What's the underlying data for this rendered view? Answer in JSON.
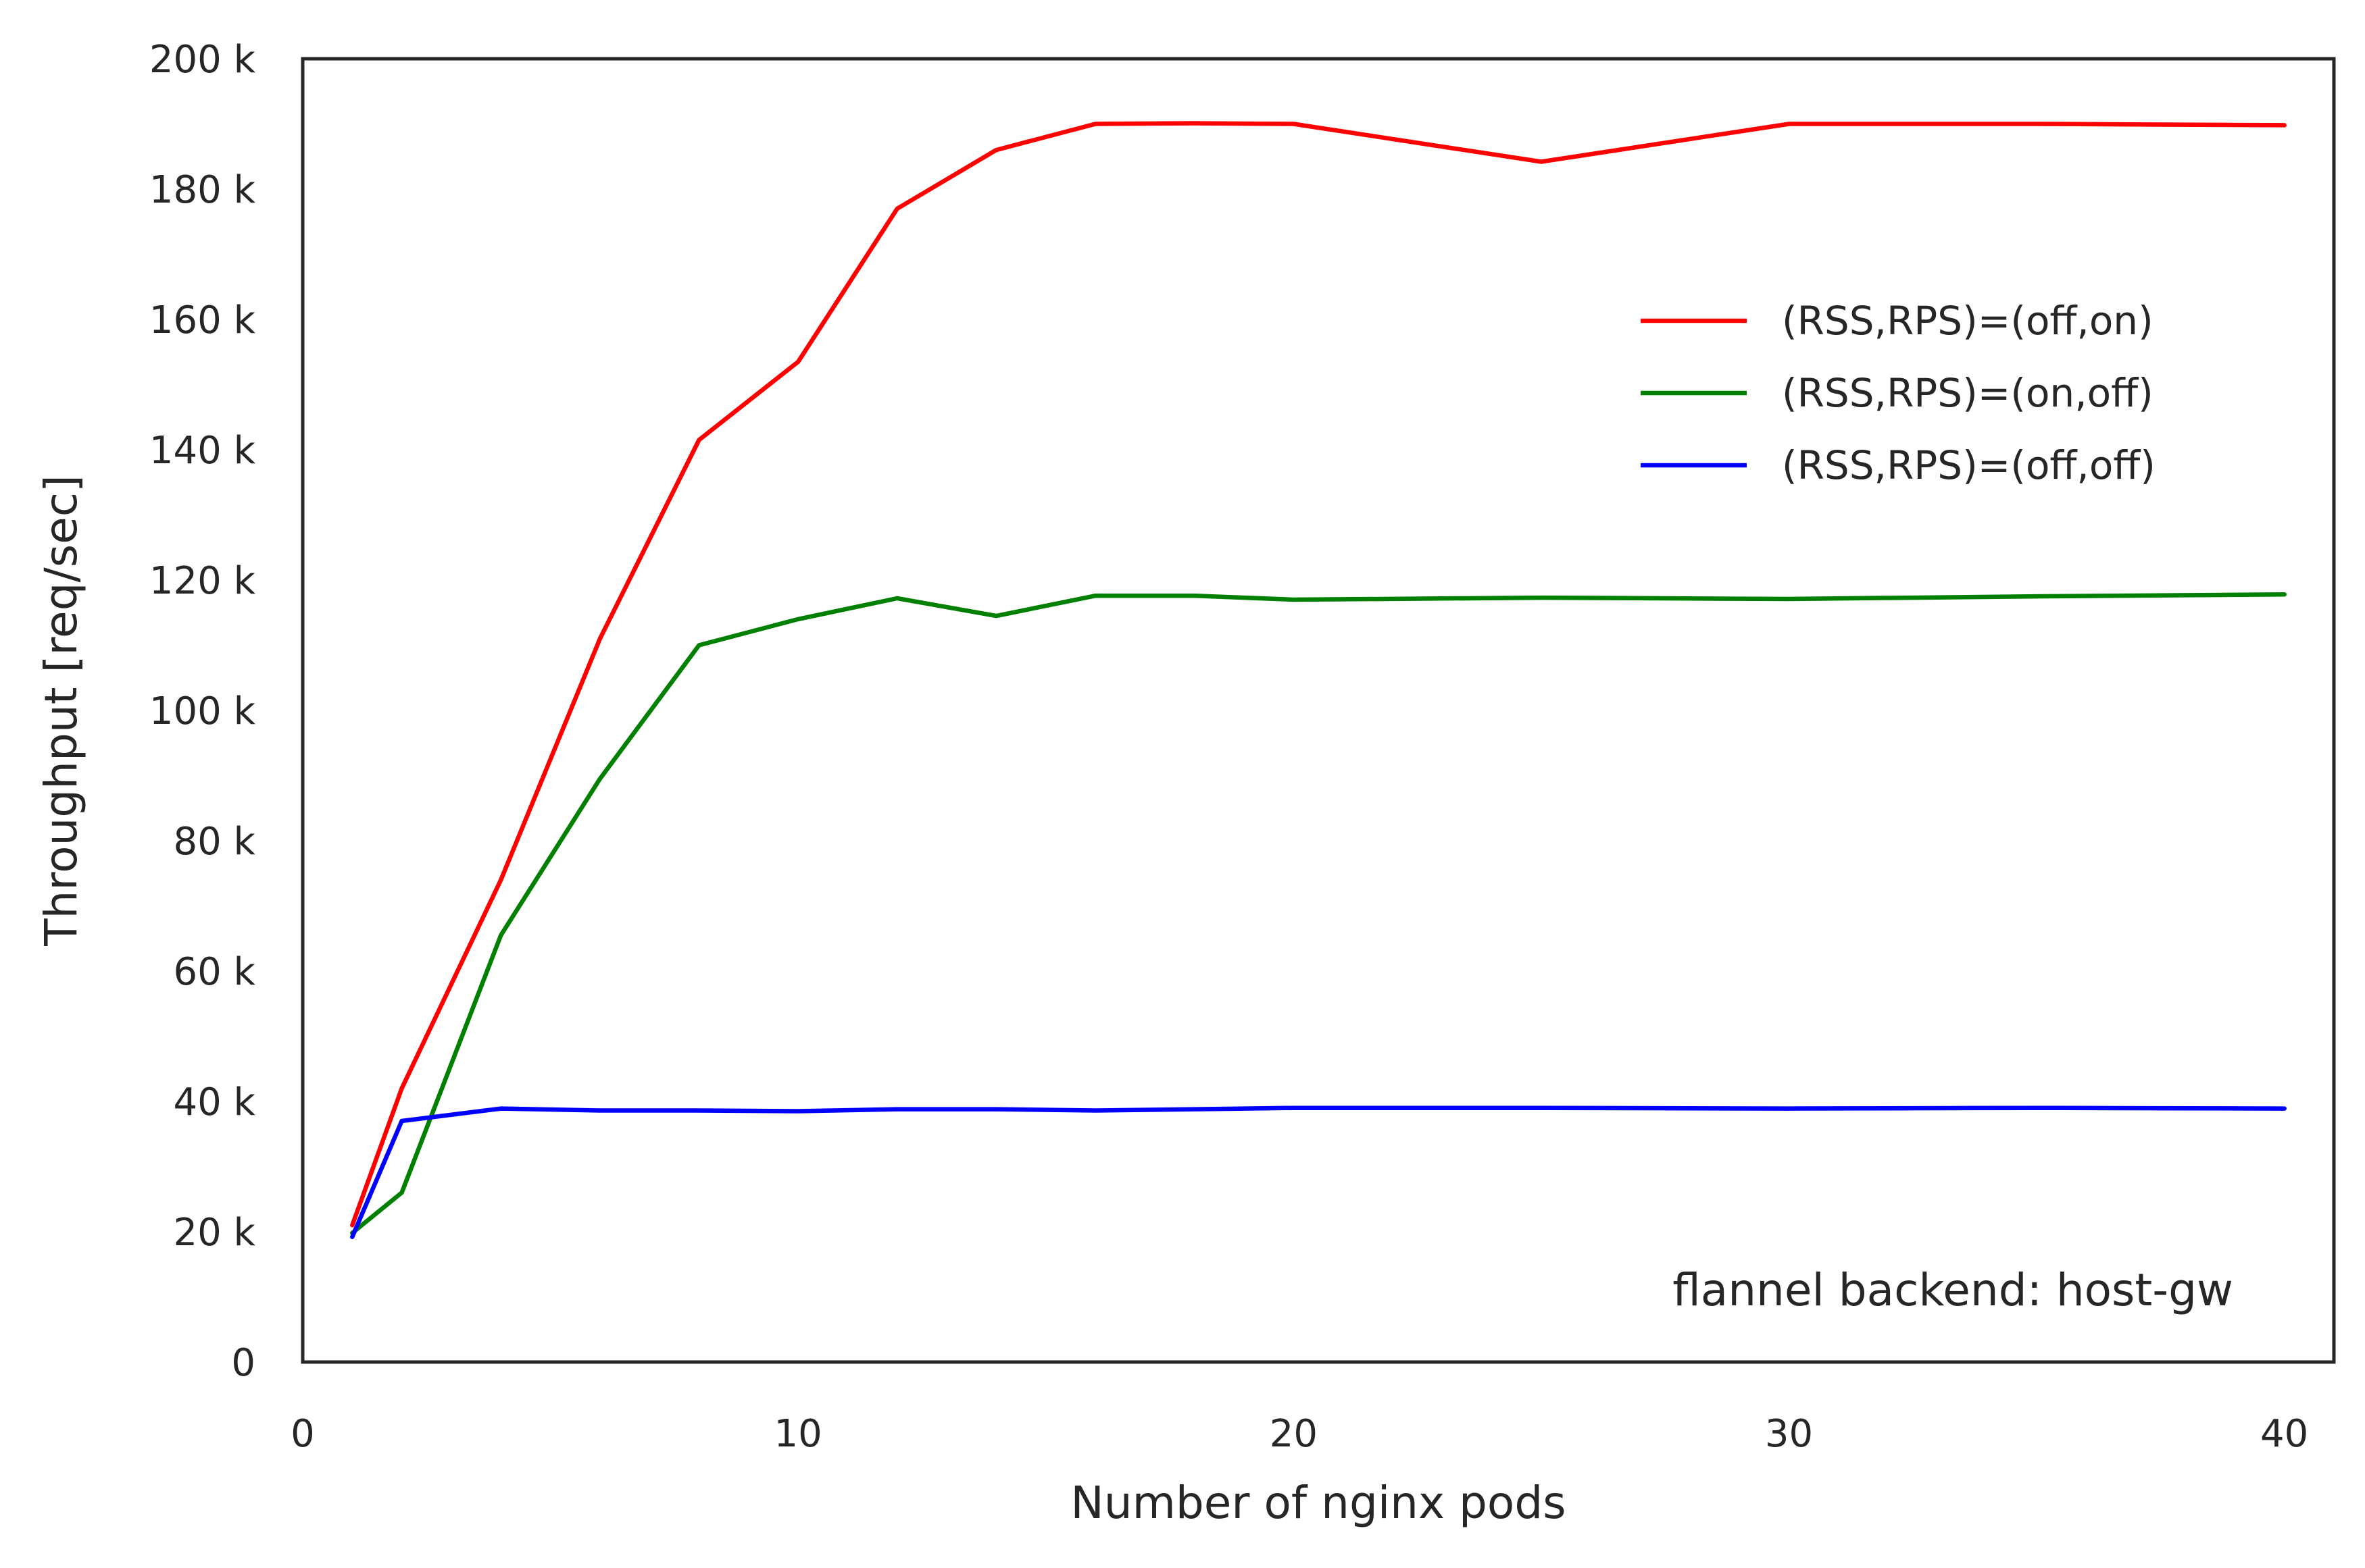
{
  "chart_data": {
    "type": "line",
    "title": "",
    "xlabel": "Number of nginx pods",
    "ylabel": "Throughput [req/sec]",
    "xlim": [
      0,
      41
    ],
    "ylim": [
      0,
      200000
    ],
    "x_ticks": [
      0,
      10,
      20,
      30,
      40
    ],
    "x_tick_labels": [
      "0",
      "10",
      "20",
      "30",
      "40"
    ],
    "y_ticks": [
      0,
      20000,
      40000,
      60000,
      80000,
      100000,
      120000,
      140000,
      160000,
      180000,
      200000
    ],
    "y_tick_labels": [
      "0",
      "20 k",
      "40 k",
      "60 k",
      "80 k",
      "100 k",
      "120 k",
      "140 k",
      "160 k",
      "180 k",
      "200 k"
    ],
    "grid": false,
    "legend_position": "upper-right",
    "annotation": "flannel backend: host-gw",
    "series": [
      {
        "name": "(RSS,RPS)=(off,on)",
        "color": "#ff0000",
        "x": [
          1,
          2,
          4,
          6,
          8,
          10,
          12,
          14,
          16,
          18,
          20,
          25,
          30,
          35,
          40
        ],
        "y": [
          21000,
          42000,
          74000,
          111000,
          141500,
          153500,
          177000,
          186000,
          190000,
          190100,
          190000,
          184200,
          190000,
          190000,
          189800
        ]
      },
      {
        "name": "(RSS,RPS)=(on,off)",
        "color": "#008000",
        "x": [
          1,
          2,
          4,
          6,
          8,
          10,
          12,
          14,
          16,
          18,
          20,
          25,
          30,
          35,
          40
        ],
        "y": [
          19800,
          26000,
          65500,
          89500,
          110000,
          114000,
          117200,
          114500,
          117600,
          117600,
          117000,
          117300,
          117100,
          117500,
          117800
        ]
      },
      {
        "name": "(RSS,RPS)=(off,off)",
        "color": "#0000ff",
        "x": [
          1,
          2,
          4,
          6,
          8,
          10,
          12,
          14,
          16,
          18,
          20,
          25,
          30,
          35,
          40
        ],
        "y": [
          19200,
          37000,
          38900,
          38600,
          38600,
          38500,
          38800,
          38800,
          38600,
          38800,
          39000,
          39000,
          38900,
          39000,
          38900
        ]
      }
    ]
  }
}
